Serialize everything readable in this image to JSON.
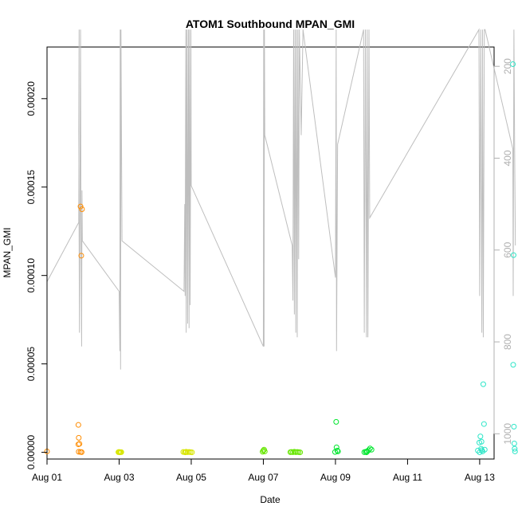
{
  "chart_data": {
    "type": "scatter",
    "title": "ATOM1 Southbound MPAN_GMI",
    "xlabel": "Date",
    "ylabel": "MPAN_GMI",
    "xlim": [
      0,
      12.4
    ],
    "ylim": [
      -3.8e-06,
      0.0002292
    ],
    "y2lim": [
      1055,
      158
    ],
    "x_ticks": [
      {
        "value": 0,
        "label": "Aug 01"
      },
      {
        "value": 2,
        "label": "Aug 03"
      },
      {
        "value": 4,
        "label": "Aug 05"
      },
      {
        "value": 6,
        "label": "Aug 07"
      },
      {
        "value": 8,
        "label": "Aug 09"
      },
      {
        "value": 10,
        "label": "Aug 11"
      },
      {
        "value": 12,
        "label": "Aug 13"
      }
    ],
    "y_ticks": [
      {
        "value": 0.0,
        "label": "0.00000"
      },
      {
        "value": 5e-05,
        "label": "0.00005"
      },
      {
        "value": 0.0001,
        "label": "0.00010"
      },
      {
        "value": 0.00015,
        "label": "0.00015"
      },
      {
        "value": 0.0002,
        "label": "0.00020"
      }
    ],
    "y2_ticks": [
      {
        "value": 200,
        "label": "200"
      },
      {
        "value": 400,
        "label": "400"
      },
      {
        "value": 600,
        "label": "600"
      },
      {
        "value": 800,
        "label": "800"
      },
      {
        "value": 1000,
        "label": "1000"
      }
    ],
    "series": [
      {
        "color": "#FF8C00",
        "points": [
          [
            0.0,
            5e-07
          ],
          [
            0.87,
            1.55e-05
          ],
          [
            0.88,
            8.2e-06
          ],
          [
            0.87,
            4.5e-06
          ],
          [
            0.9,
            4.8e-06
          ],
          [
            0.88,
            3e-07
          ],
          [
            0.93,
            2e-07
          ],
          [
            0.96,
            1e-07
          ],
          [
            0.93,
            0.000139
          ],
          [
            0.97,
            0.0001375
          ],
          [
            0.95,
            0.0001112
          ]
        ]
      },
      {
        "color": "#D8E600",
        "points": [
          [
            1.98,
            1e-07
          ],
          [
            2.0,
            2e-07
          ],
          [
            2.02,
            0.0
          ],
          [
            2.04,
            1e-07
          ],
          [
            2.06,
            1e-07
          ],
          [
            3.78,
            2e-07
          ],
          [
            3.82,
            1e-07
          ],
          [
            3.86,
            3e-07
          ],
          [
            3.9,
            1e-07
          ],
          [
            3.94,
            2e-07
          ],
          [
            3.98,
            1e-07
          ],
          [
            4.02,
            0.0
          ],
          [
            3.84,
            0.0
          ]
        ]
      },
      {
        "color": "#66E600",
        "points": [
          [
            5.98,
            3e-07
          ],
          [
            6.0,
            1e-06
          ],
          [
            6.02,
            1.5e-06
          ],
          [
            6.04,
            5e-07
          ],
          [
            6.75,
            1e-07
          ],
          [
            6.78,
            2e-07
          ],
          [
            6.82,
            1e-07
          ],
          [
            6.86,
            3e-07
          ],
          [
            6.9,
            1e-07
          ],
          [
            6.94,
            2e-07
          ],
          [
            6.98,
            1e-07
          ],
          [
            7.02,
            0.0
          ]
        ]
      },
      {
        "color": "#00E62E",
        "points": [
          [
            8.02,
            1.72e-05
          ],
          [
            8.03,
            2.8e-06
          ],
          [
            8.05,
            1e-06
          ],
          [
            8.07,
            5e-07
          ],
          [
            7.99,
            2e-07
          ],
          [
            8.8,
            1e-07
          ],
          [
            8.84,
            3e-07
          ],
          [
            8.88,
            5e-07
          ],
          [
            8.92,
            1.2e-06
          ],
          [
            8.96,
            2.2e-06
          ],
          [
            9.0,
            1.5e-06
          ],
          [
            8.86,
            0.0
          ]
        ]
      },
      {
        "color": "#2EE6C8",
        "points": [
          [
            11.95,
            1e-06
          ],
          [
            11.99,
            5.5e-06
          ],
          [
            12.02,
            9e-06
          ],
          [
            12.04,
            2e-06
          ],
          [
            12.06,
            1.2e-06
          ],
          [
            12.08,
            5e-07
          ],
          [
            12.1,
            3.85e-05
          ],
          [
            12.12,
            1.6e-05
          ],
          [
            12.14,
            1.5e-06
          ],
          [
            12.0,
            0.0
          ],
          [
            12.05,
            6e-06
          ],
          [
            12.92,
            0.0002195
          ],
          [
            12.94,
            0.0001115
          ],
          [
            12.93,
            4.95e-05
          ],
          [
            12.95,
            1.45e-05
          ],
          [
            12.96,
            5e-06
          ],
          [
            12.97,
            2e-06
          ],
          [
            12.98,
            5e-07
          ]
        ]
      }
    ],
    "secondary_line": {
      "color": "#BEBEBE",
      "axis": "right",
      "values": [
        [
          0.0,
          669
        ],
        [
          0.88,
          540
        ],
        [
          0.89,
          120
        ],
        [
          0.88,
          340
        ],
        [
          0.9,
          780
        ],
        [
          0.93,
          120
        ],
        [
          0.94,
          520
        ],
        [
          0.96,
          810
        ],
        [
          0.97,
          470
        ],
        [
          0.98,
          580
        ],
        [
          2.0,
          690
        ],
        [
          2.02,
          820
        ],
        [
          2.03,
          120
        ],
        [
          2.04,
          860
        ],
        [
          2.05,
          120
        ],
        [
          2.08,
          580
        ],
        [
          3.8,
          690
        ],
        [
          3.82,
          500
        ],
        [
          3.83,
          700
        ],
        [
          3.85,
          120
        ],
        [
          3.86,
          780
        ],
        [
          3.88,
          120
        ],
        [
          3.9,
          760
        ],
        [
          3.92,
          120
        ],
        [
          3.94,
          770
        ],
        [
          3.95,
          120
        ],
        [
          3.97,
          720
        ],
        [
          3.99,
          120
        ],
        [
          4.0,
          460
        ],
        [
          6.0,
          810
        ],
        [
          6.01,
          120
        ],
        [
          6.02,
          810
        ],
        [
          6.03,
          120
        ],
        [
          6.04,
          350
        ],
        [
          6.8,
          590
        ],
        [
          6.82,
          710
        ],
        [
          6.84,
          120
        ],
        [
          6.86,
          740
        ],
        [
          6.88,
          120
        ],
        [
          6.9,
          780
        ],
        [
          6.92,
          120
        ],
        [
          6.94,
          790
        ],
        [
          6.96,
          120
        ],
        [
          6.98,
          620
        ],
        [
          7.0,
          120
        ],
        [
          7.05,
          350
        ],
        [
          7.1,
          120
        ],
        [
          8.0,
          660
        ],
        [
          8.02,
          120
        ],
        [
          8.03,
          820
        ],
        [
          8.06,
          370
        ],
        [
          8.78,
          120
        ],
        [
          8.8,
          780
        ],
        [
          8.83,
          120
        ],
        [
          8.86,
          790
        ],
        [
          8.88,
          120
        ],
        [
          8.9,
          790
        ],
        [
          8.93,
          120
        ],
        [
          8.95,
          530
        ],
        [
          11.98,
          120
        ],
        [
          12.0,
          700
        ],
        [
          12.03,
          120
        ],
        [
          12.06,
          780
        ],
        [
          12.08,
          120
        ],
        [
          12.1,
          790
        ],
        [
          12.13,
          120
        ],
        [
          12.15,
          120
        ],
        [
          12.92,
          380
        ],
        [
          12.93,
          700
        ],
        [
          12.95,
          120
        ],
        [
          12.97,
          380
        ],
        [
          12.99,
          590
        ]
      ]
    }
  }
}
